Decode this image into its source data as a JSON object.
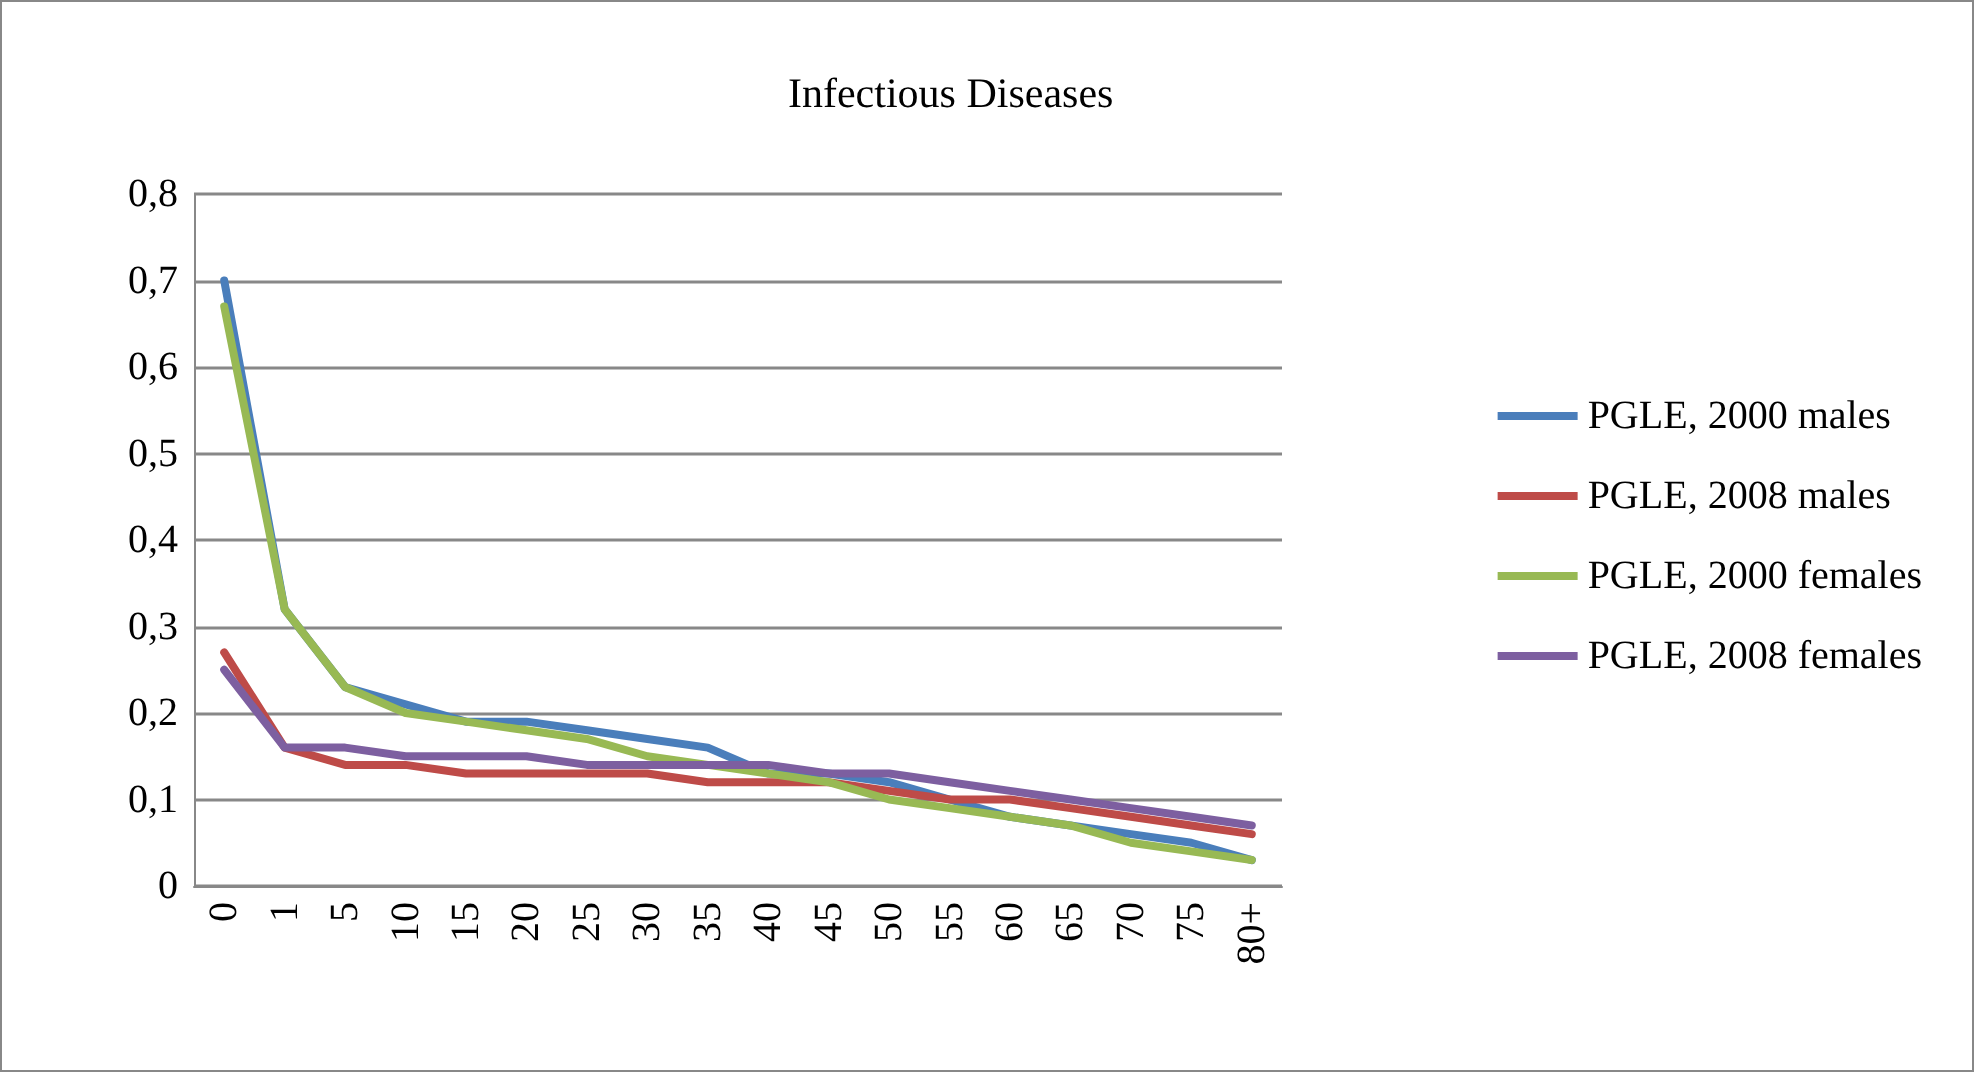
{
  "chart_data": {
    "type": "line",
    "title": "Infectious Diseases",
    "categories": [
      "0",
      "1",
      "5",
      "10",
      "15",
      "20",
      "25",
      "30",
      "35",
      "40",
      "45",
      "50",
      "55",
      "60",
      "65",
      "70",
      "75",
      "80+"
    ],
    "series": [
      {
        "name": "PGLE, 2000 males",
        "color": "#4a7ebb",
        "values": [
          0.7,
          0.32,
          0.23,
          0.21,
          0.19,
          0.19,
          0.18,
          0.17,
          0.16,
          0.13,
          0.13,
          0.12,
          0.1,
          0.08,
          0.07,
          0.06,
          0.05,
          0.03
        ]
      },
      {
        "name": "PGLE, 2008 males",
        "color": "#be4b48",
        "values": [
          0.27,
          0.16,
          0.14,
          0.14,
          0.13,
          0.13,
          0.13,
          0.13,
          0.12,
          0.12,
          0.12,
          0.11,
          0.1,
          0.1,
          0.09,
          0.08,
          0.07,
          0.06
        ]
      },
      {
        "name": "PGLE, 2000 females",
        "color": "#98b954",
        "values": [
          0.67,
          0.32,
          0.23,
          0.2,
          0.19,
          0.18,
          0.17,
          0.15,
          0.14,
          0.13,
          0.12,
          0.1,
          0.09,
          0.08,
          0.07,
          0.05,
          0.04,
          0.03
        ]
      },
      {
        "name": "PGLE, 2008 females",
        "color": "#7d5fa0",
        "values": [
          0.25,
          0.16,
          0.16,
          0.15,
          0.15,
          0.15,
          0.14,
          0.14,
          0.14,
          0.14,
          0.13,
          0.13,
          0.12,
          0.11,
          0.1,
          0.09,
          0.08,
          0.07
        ]
      }
    ],
    "ylim": [
      0,
      0.8
    ],
    "yticks": [
      0,
      {
        "value": 0.1,
        "label": "0,1"
      },
      {
        "value": 0.2,
        "label": "0,2"
      },
      {
        "value": 0.3,
        "label": "0,3"
      },
      {
        "value": 0.4,
        "label": "0,4"
      },
      {
        "value": 0.5,
        "label": "0,5"
      },
      {
        "value": 0.6,
        "label": "0,6"
      },
      {
        "value": 0.7,
        "label": "0,7"
      },
      {
        "value": 0.8,
        "label": "0,8"
      }
    ],
    "grid": "y",
    "legend": "right",
    "marker": "none",
    "line_style": "solid"
  }
}
